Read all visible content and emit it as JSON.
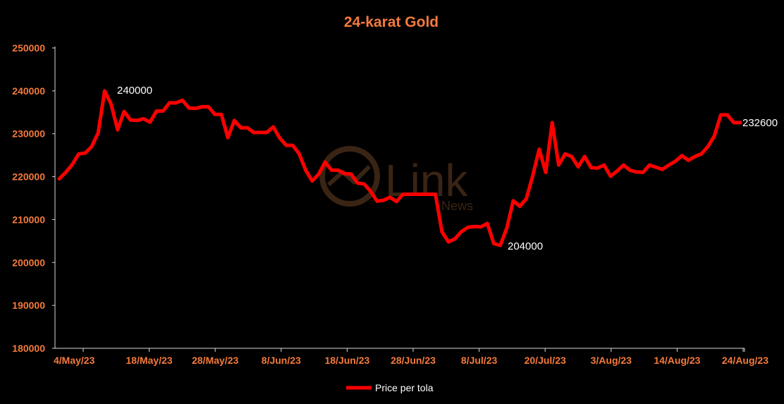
{
  "chart_data": {
    "type": "line",
    "title": "24-karat Gold",
    "xlabel": "",
    "ylabel": "",
    "ylim": [
      180000,
      250000
    ],
    "y_ticks": [
      180000,
      190000,
      200000,
      210000,
      220000,
      230000,
      240000,
      250000
    ],
    "x_tick_labels": [
      "4/May/23",
      "18/May/23",
      "28/May/23",
      "8/Jun/23",
      "18/Jun/23",
      "28/Jun/23",
      "8/Jul/23",
      "20/Jul/23",
      "3/Aug/23",
      "14/Aug/23",
      "24/Aug/23"
    ],
    "legend": "bottom",
    "grid": false,
    "series": [
      {
        "name": "Price per tola",
        "color": "#ff0000",
        "values": [
          219500,
          221000,
          222800,
          225300,
          225500,
          227000,
          230200,
          240000,
          236900,
          230900,
          235200,
          233200,
          233100,
          233500,
          232700,
          235300,
          235300,
          237200,
          237200,
          237800,
          236000,
          235900,
          236300,
          236300,
          234500,
          234500,
          229100,
          233100,
          231400,
          231400,
          230300,
          230300,
          230300,
          231600,
          229000,
          227300,
          227300,
          225300,
          221500,
          219000,
          220600,
          223400,
          221500,
          221500,
          220700,
          220600,
          218500,
          218300,
          216600,
          214300,
          214500,
          215200,
          214200,
          215900,
          215900,
          215900,
          215900,
          215900,
          215900,
          207200,
          204800,
          205500,
          207200,
          208200,
          208400,
          208300,
          209100,
          204400,
          204000,
          208000,
          214400,
          213100,
          214800,
          220200,
          226400,
          221000,
          232600,
          222700,
          225300,
          224700,
          222300,
          224700,
          222100,
          222000,
          222700,
          220100,
          221300,
          222700,
          221500,
          221100,
          221000,
          222700,
          222200,
          221700,
          222700,
          223600,
          224900,
          223800,
          224700,
          225300,
          227000,
          229500,
          234400,
          234400,
          232600,
          232600
        ]
      }
    ],
    "annotations": [
      "240000",
      "204000",
      "232600"
    ]
  },
  "watermark": {
    "brand": "Link",
    "sub": "News"
  }
}
